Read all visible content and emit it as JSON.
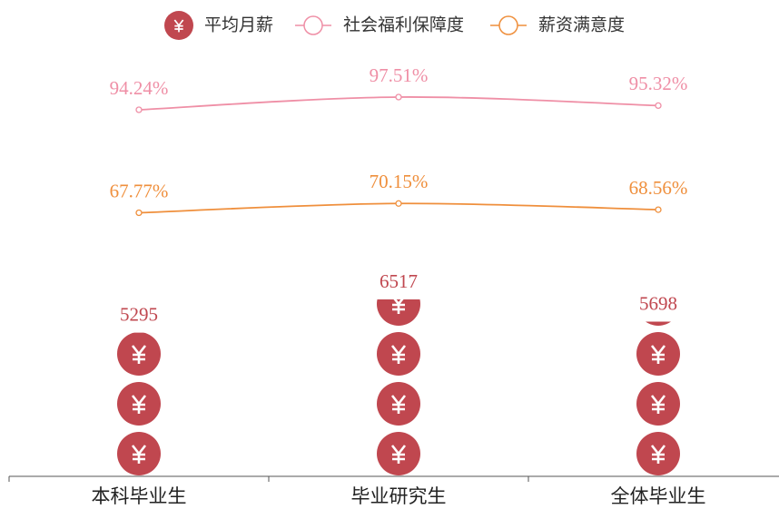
{
  "chart_data": {
    "type": "bar",
    "categories": [
      "本科毕业生",
      "毕业研究生",
      "全体毕业生"
    ],
    "series": [
      {
        "name": "平均月薪",
        "type": "pictorialBar",
        "color": "#c0474f",
        "values": [
          5295,
          6517,
          5698
        ]
      },
      {
        "name": "社会福利保障度",
        "type": "line",
        "color": "#ef8fa6",
        "values": [
          94.24,
          97.51,
          95.32
        ],
        "value_labels": [
          "94.24%",
          "97.51%",
          "95.32%"
        ]
      },
      {
        "name": "薪资满意度",
        "type": "line",
        "color": "#ef8f3c",
        "values": [
          67.77,
          70.15,
          68.56
        ],
        "value_labels": [
          "67.77%",
          "70.15%",
          "68.56%"
        ]
      }
    ]
  }
}
